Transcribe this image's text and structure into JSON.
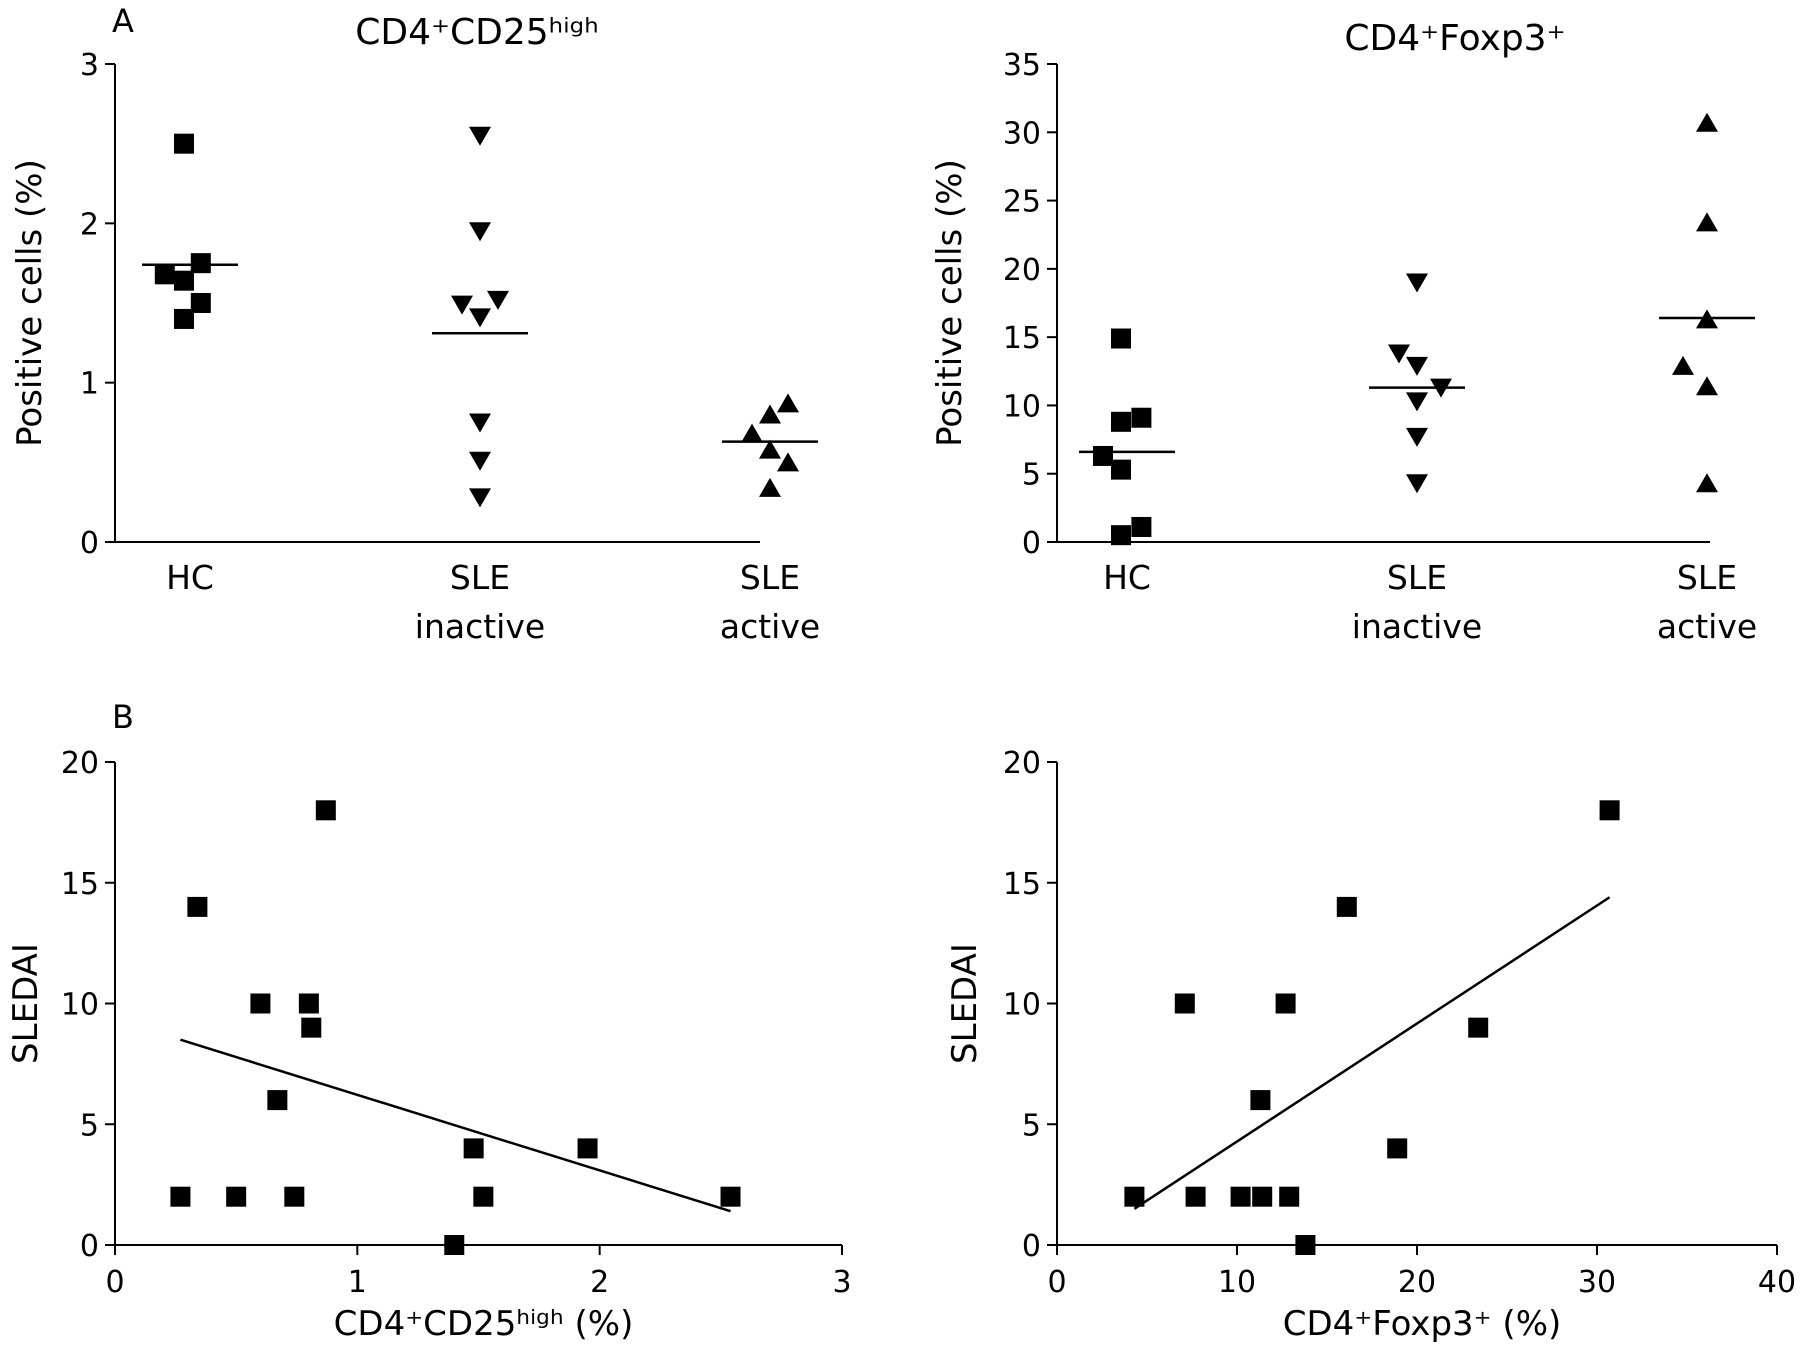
{
  "chart_data": [
    {
      "type": "scatter",
      "panel": "A",
      "title": "CD4⁺CD25ʰⁱᵍʰ",
      "xlabel": "",
      "ylabel": "Positive cells (%)",
      "ylim": [
        0,
        3
      ],
      "yticks": [
        0,
        1,
        2,
        3
      ],
      "grid": false,
      "categories": [
        {
          "line1": "HC",
          "line2": ""
        },
        {
          "line1": "SLE",
          "line2": "inactive"
        },
        {
          "line1": "SLE",
          "line2": "active"
        }
      ],
      "series": [
        {
          "marker": "square",
          "medianLine": 1.74,
          "points": [
            {
              "j": -0.1,
              "v": 2.5
            },
            {
              "j": -0.42,
              "v": 1.68
            },
            {
              "j": -0.1,
              "v": 1.64
            },
            {
              "j": 0.18,
              "v": 1.75
            },
            {
              "j": 0.18,
              "v": 1.5
            },
            {
              "j": -0.1,
              "v": 1.4
            }
          ]
        },
        {
          "marker": "triangle-down",
          "medianLine": 1.31,
          "points": [
            {
              "j": 0,
              "v": 2.55
            },
            {
              "j": 0,
              "v": 1.95
            },
            {
              "j": -0.3,
              "v": 1.49
            },
            {
              "j": 0.3,
              "v": 1.52
            },
            {
              "j": 0,
              "v": 1.41
            },
            {
              "j": 0,
              "v": 0.75
            },
            {
              "j": 0,
              "v": 0.51
            },
            {
              "j": 0,
              "v": 0.28
            }
          ]
        },
        {
          "marker": "triangle-up",
          "medianLine": 0.63,
          "points": [
            {
              "j": -0.3,
              "v": 0.68
            },
            {
              "j": 0,
              "v": 0.8
            },
            {
              "j": 0.3,
              "v": 0.87
            },
            {
              "j": 0,
              "v": 0.58
            },
            {
              "j": 0.3,
              "v": 0.5
            },
            {
              "j": 0,
              "v": 0.34
            }
          ]
        }
      ]
    },
    {
      "type": "scatter",
      "panel": "",
      "title": "CD4⁺Foxp3⁺",
      "xlabel": "",
      "ylabel": "Positive cells (%)",
      "ylim": [
        0,
        35
      ],
      "yticks": [
        0,
        5,
        10,
        15,
        20,
        25,
        30,
        35
      ],
      "grid": false,
      "categories": [
        {
          "line1": "HC",
          "line2": ""
        },
        {
          "line1": "SLE",
          "line2": "inactive"
        },
        {
          "line1": "SLE",
          "line2": "active"
        }
      ],
      "series": [
        {
          "marker": "square",
          "medianLine": 6.6,
          "points": [
            {
              "j": -0.1,
              "v": 14.9
            },
            {
              "j": -0.1,
              "v": 8.8
            },
            {
              "j": 0.24,
              "v": 9.1
            },
            {
              "j": -0.4,
              "v": 6.3
            },
            {
              "j": -0.1,
              "v": 5.3
            },
            {
              "j": 0.24,
              "v": 1.1
            },
            {
              "j": -0.1,
              "v": 0.5
            }
          ]
        },
        {
          "marker": "triangle-down",
          "medianLine": 11.3,
          "points": [
            {
              "j": 0,
              "v": 19.0
            },
            {
              "j": -0.3,
              "v": 13.8
            },
            {
              "j": 0,
              "v": 12.9
            },
            {
              "j": 0.4,
              "v": 11.3
            },
            {
              "j": 0,
              "v": 10.3
            },
            {
              "j": 0,
              "v": 7.7
            },
            {
              "j": 0,
              "v": 4.3
            }
          ]
        },
        {
          "marker": "triangle-up",
          "medianLine": 16.4,
          "points": [
            {
              "j": 0,
              "v": 30.7
            },
            {
              "j": 0,
              "v": 23.4
            },
            {
              "j": 0,
              "v": 16.3
            },
            {
              "j": -0.4,
              "v": 12.9
            },
            {
              "j": 0,
              "v": 11.4
            },
            {
              "j": 0,
              "v": 4.3
            }
          ]
        }
      ]
    },
    {
      "type": "scatter",
      "panel": "B",
      "title": "",
      "xlabel": "CD4⁺CD25ʰⁱᵍʰ (%)",
      "ylabel": "SLEDAI",
      "xlim": [
        0,
        3
      ],
      "ylim": [
        0,
        20
      ],
      "xticks": [
        0,
        1,
        2,
        3
      ],
      "yticks": [
        0,
        5,
        10,
        15,
        20
      ],
      "grid": false,
      "points": [
        {
          "x": 0.27,
          "y": 2
        },
        {
          "x": 0.34,
          "y": 14
        },
        {
          "x": 0.5,
          "y": 2
        },
        {
          "x": 0.6,
          "y": 10
        },
        {
          "x": 0.67,
          "y": 6
        },
        {
          "x": 0.74,
          "y": 2
        },
        {
          "x": 0.8,
          "y": 10
        },
        {
          "x": 0.81,
          "y": 9
        },
        {
          "x": 0.87,
          "y": 18
        },
        {
          "x": 1.4,
          "y": 0
        },
        {
          "x": 1.48,
          "y": 4
        },
        {
          "x": 1.52,
          "y": 2
        },
        {
          "x": 1.95,
          "y": 4
        },
        {
          "x": 2.54,
          "y": 2
        }
      ],
      "fit": {
        "x": [
          0.27,
          2.54
        ],
        "y": [
          8.5,
          1.4
        ]
      }
    },
    {
      "type": "scatter",
      "panel": "",
      "title": "",
      "xlabel": "CD4⁺Foxp3⁺ (%)",
      "ylabel": "SLEDAI",
      "xlim": [
        0,
        40
      ],
      "ylim": [
        0,
        20
      ],
      "xticks": [
        0,
        10,
        20,
        30,
        40
      ],
      "yticks": [
        0,
        5,
        10,
        15,
        20
      ],
      "grid": false,
      "points": [
        {
          "x": 4.3,
          "y": 2
        },
        {
          "x": 7.1,
          "y": 10
        },
        {
          "x": 7.7,
          "y": 2
        },
        {
          "x": 10.2,
          "y": 2
        },
        {
          "x": 11.3,
          "y": 6
        },
        {
          "x": 11.4,
          "y": 2
        },
        {
          "x": 12.7,
          "y": 10
        },
        {
          "x": 12.9,
          "y": 2
        },
        {
          "x": 13.8,
          "y": 0
        },
        {
          "x": 16.1,
          "y": 14
        },
        {
          "x": 18.9,
          "y": 4
        },
        {
          "x": 23.4,
          "y": 9
        },
        {
          "x": 30.7,
          "y": 18
        }
      ],
      "fit": {
        "x": [
          4.3,
          30.7
        ],
        "y": [
          1.5,
          14.4
        ]
      }
    }
  ]
}
